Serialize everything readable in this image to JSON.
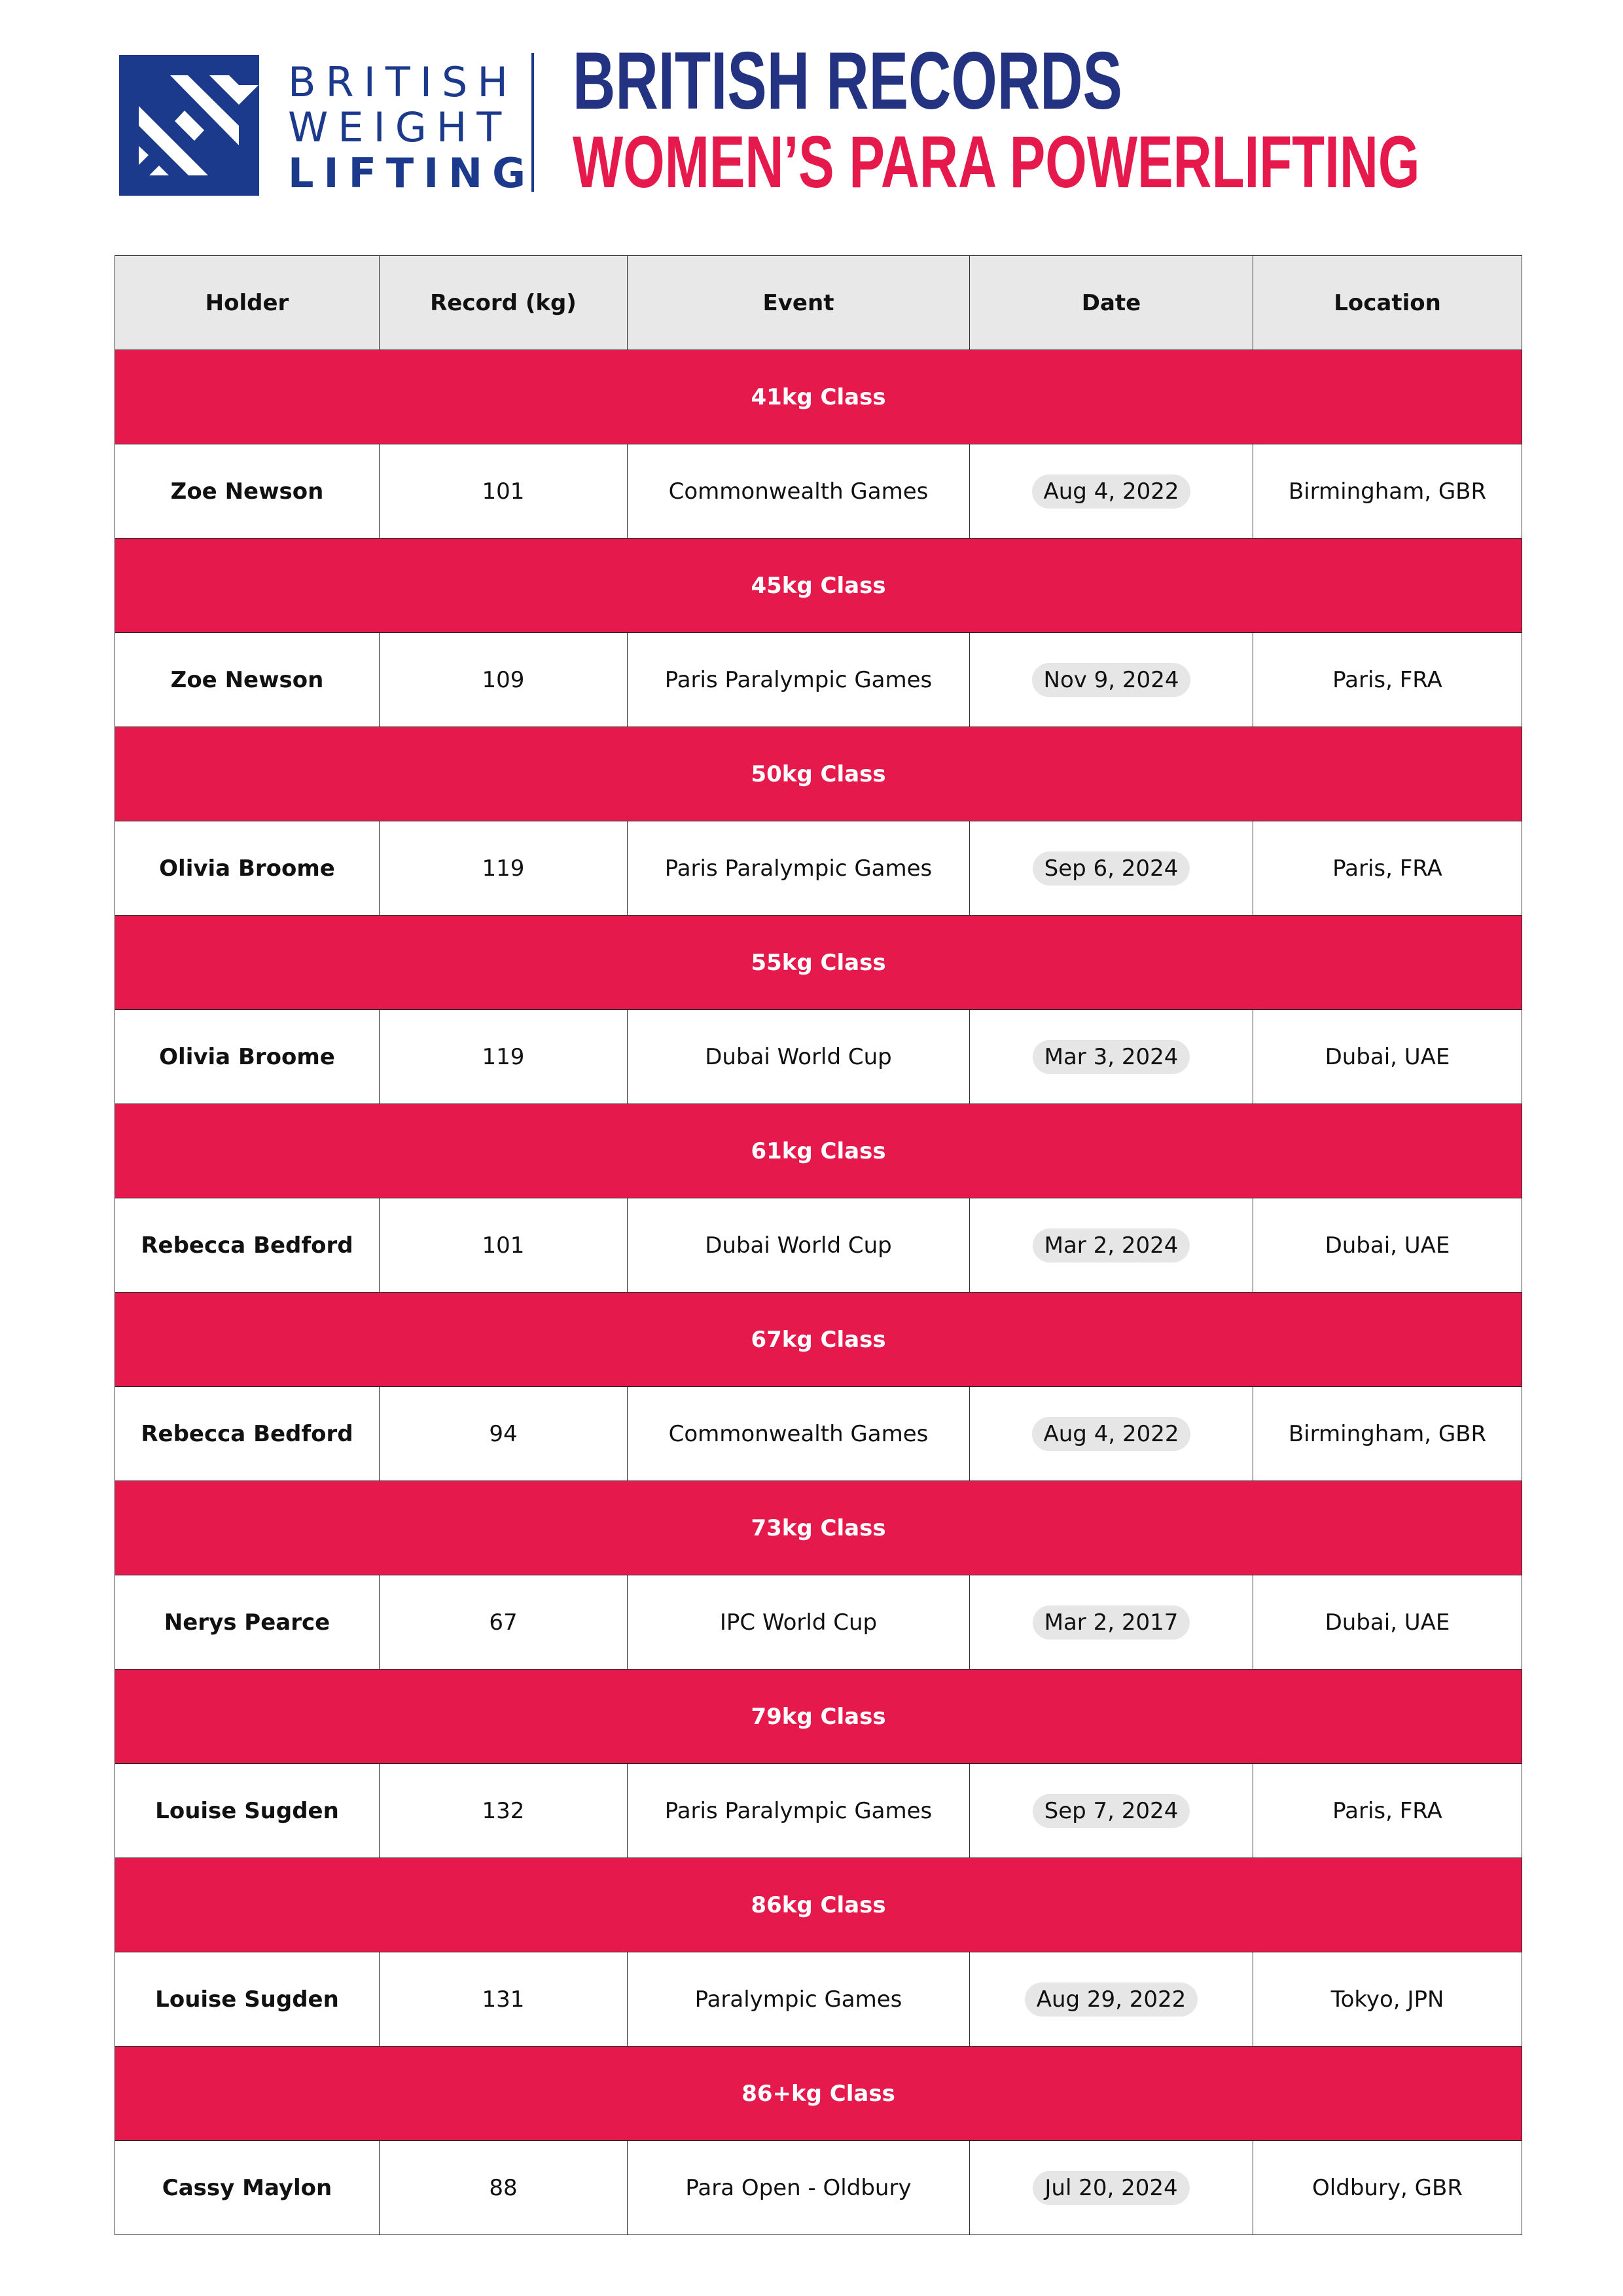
{
  "brand": {
    "logo_text": [
      "BRITISH",
      "WEIGHT",
      "LIFTING"
    ],
    "title": "BRITISH RECORDS",
    "subtitle": "WOMEN’S PARA POWERLIFTING",
    "colors": {
      "navy": "#243282",
      "red": "#e5194b",
      "header_gray": "#e8e8e8"
    }
  },
  "table": {
    "columns": [
      "Holder",
      "Record (kg)",
      "Event",
      "Date",
      "Location"
    ],
    "groups": [
      {
        "class": "41kg Class",
        "row": [
          "Zoe Newson",
          "101",
          "Commonwealth Games",
          "Aug 4, 2022",
          "Birmingham, GBR"
        ]
      },
      {
        "class": "45kg Class",
        "row": [
          "Zoe Newson",
          "109",
          "Paris Paralympic Games",
          "Nov 9, 2024",
          "Paris, FRA"
        ]
      },
      {
        "class": "50kg Class",
        "row": [
          "Olivia Broome",
          "119",
          "Paris Paralympic Games",
          "Sep 6, 2024",
          "Paris, FRA"
        ]
      },
      {
        "class": "55kg Class",
        "row": [
          "Olivia Broome",
          "119",
          "Dubai World Cup",
          "Mar 3, 2024",
          "Dubai, UAE"
        ]
      },
      {
        "class": "61kg Class",
        "row": [
          "Rebecca Bedford",
          "101",
          "Dubai World Cup",
          "Mar 2, 2024",
          "Dubai, UAE"
        ]
      },
      {
        "class": "67kg Class",
        "row": [
          "Rebecca Bedford",
          "94",
          "Commonwealth Games",
          "Aug 4, 2022",
          "Birmingham, GBR"
        ]
      },
      {
        "class": "73kg Class",
        "row": [
          "Nerys Pearce",
          "67",
          "IPC World Cup",
          "Mar 2, 2017",
          "Dubai, UAE"
        ]
      },
      {
        "class": "79kg Class",
        "row": [
          "Louise Sugden",
          "132",
          "Paris Paralympic Games",
          "Sep 7, 2024",
          "Paris, FRA"
        ]
      },
      {
        "class": "86kg Class",
        "row": [
          "Louise Sugden",
          "131",
          "Paralympic Games",
          "Aug 29, 2022",
          "Tokyo, JPN"
        ]
      },
      {
        "class": "86+kg Class",
        "row": [
          "Cassy Maylon",
          "88",
          "Para Open - Oldbury",
          "Jul 20, 2024",
          "Oldbury, GBR"
        ]
      }
    ]
  }
}
